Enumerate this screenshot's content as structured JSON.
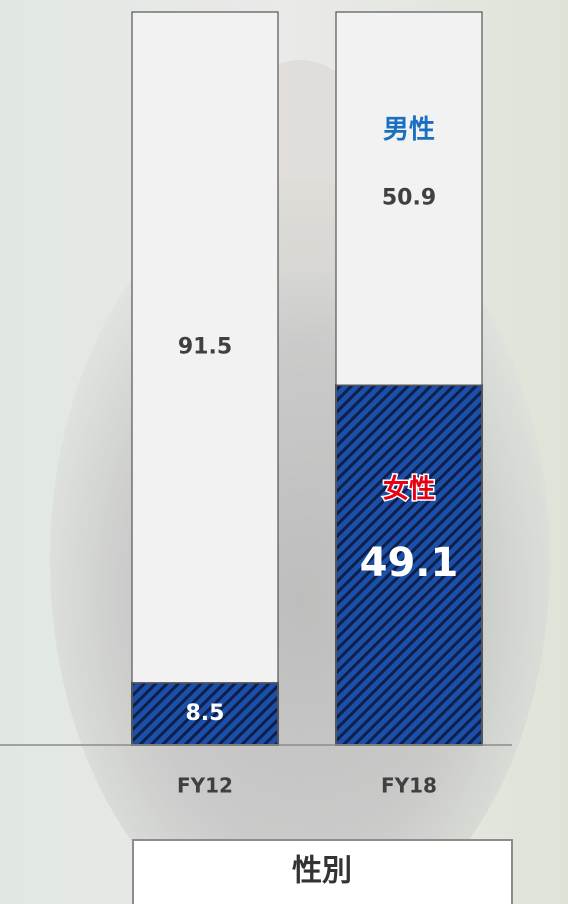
{
  "chart_data": {
    "type": "bar",
    "stacked": true,
    "categories": [
      "FY12",
      "FY18"
    ],
    "series": [
      {
        "name": "女性",
        "color": "#1b4fa8",
        "values": [
          8.5,
          49.1
        ]
      },
      {
        "name": "男性",
        "color": "#f2f2f2",
        "values": [
          91.5,
          50.9
        ]
      }
    ],
    "ylim": [
      0,
      100
    ],
    "footer": "性別"
  }
}
